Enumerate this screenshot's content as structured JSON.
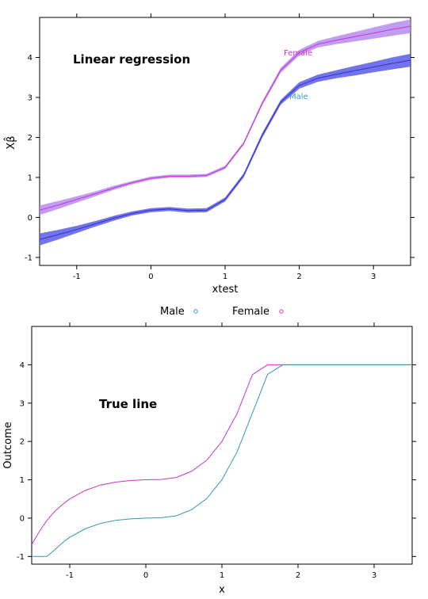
{
  "chart_data": [
    {
      "type": "line",
      "title": "Linear regression",
      "xlabel": "xtest",
      "ylabel": "Xβ̂",
      "xlim": [
        -1.5,
        3.5
      ],
      "ylim": [
        -1.2,
        5.0
      ],
      "xticks": [
        -1,
        0,
        1,
        2,
        3
      ],
      "xtick_labels": [
        "-1",
        "0",
        "1",
        "2",
        "3"
      ],
      "yticks": [
        -1,
        0,
        1,
        2,
        3,
        4
      ],
      "ytick_labels": [
        "-1",
        "0",
        "1",
        "2",
        "3",
        "4"
      ],
      "grid": false,
      "bands": true,
      "x": [
        -1.5,
        -1.25,
        -1.0,
        -0.75,
        -0.5,
        -0.25,
        0.0,
        0.25,
        0.5,
        0.75,
        1.0,
        1.25,
        1.5,
        1.75,
        2.0,
        2.25,
        2.5,
        2.75,
        3.0,
        3.25,
        3.5
      ],
      "series": [
        {
          "name": "Female",
          "color": "#cc33cc",
          "band_color": "#b48cf0",
          "values": [
            0.18,
            0.31,
            0.45,
            0.59,
            0.74,
            0.87,
            0.98,
            1.03,
            1.03,
            1.05,
            1.25,
            1.85,
            2.85,
            3.68,
            4.12,
            4.33,
            4.43,
            4.52,
            4.61,
            4.7,
            4.78
          ],
          "lower": [
            0.06,
            0.21,
            0.37,
            0.53,
            0.69,
            0.83,
            0.94,
            0.99,
            0.99,
            1.01,
            1.21,
            1.81,
            2.8,
            3.62,
            4.05,
            4.25,
            4.33,
            4.4,
            4.47,
            4.54,
            4.61
          ],
          "upper": [
            0.3,
            0.41,
            0.53,
            0.65,
            0.79,
            0.91,
            1.02,
            1.07,
            1.07,
            1.09,
            1.29,
            1.89,
            2.9,
            3.74,
            4.19,
            4.41,
            4.53,
            4.64,
            4.75,
            4.86,
            4.95
          ]
        },
        {
          "name": "Male",
          "color": "#3333cc",
          "band_color": "#5a5ae6",
          "values": [
            -0.55,
            -0.43,
            -0.3,
            -0.16,
            -0.02,
            0.1,
            0.18,
            0.21,
            0.17,
            0.18,
            0.45,
            1.05,
            2.05,
            2.88,
            3.3,
            3.48,
            3.58,
            3.67,
            3.76,
            3.85,
            3.93
          ],
          "lower": [
            -0.7,
            -0.55,
            -0.39,
            -0.23,
            -0.08,
            0.05,
            0.13,
            0.16,
            0.12,
            0.13,
            0.4,
            1.0,
            1.99,
            2.82,
            3.22,
            3.39,
            3.48,
            3.55,
            3.63,
            3.7,
            3.77
          ],
          "upper": [
            -0.4,
            -0.31,
            -0.21,
            -0.09,
            0.04,
            0.15,
            0.23,
            0.26,
            0.22,
            0.23,
            0.5,
            1.1,
            2.11,
            2.94,
            3.38,
            3.57,
            3.68,
            3.79,
            3.89,
            4.0,
            4.09
          ]
        }
      ],
      "annotations": [
        {
          "text": "Female",
          "x": 1.95,
          "y": 4.15,
          "color": "#cc33cc"
        },
        {
          "text": "Male",
          "x": 1.95,
          "y": 3.05,
          "color": "#3399cc"
        }
      ]
    },
    {
      "type": "line",
      "title": "True line",
      "xlabel": "x",
      "ylabel": "Outcome",
      "xlim": [
        -1.5,
        3.5
      ],
      "ylim": [
        -1.2,
        5.0
      ],
      "xticks": [
        -1,
        0,
        1,
        2,
        3
      ],
      "xtick_labels": [
        "-1",
        "0",
        "1",
        "2",
        "3"
      ],
      "yticks": [
        -1,
        0,
        1,
        2,
        3,
        4
      ],
      "ytick_labels": [
        "-1",
        "0",
        "1",
        "2",
        "3",
        "4"
      ],
      "grid": false,
      "x": [
        -1.5,
        -1.4,
        -1.3,
        -1.2,
        -1.1,
        -1.0,
        -0.8,
        -0.6,
        -0.4,
        -0.2,
        0.0,
        0.2,
        0.4,
        0.6,
        0.8,
        1.0,
        1.2,
        1.4,
        1.6,
        1.8,
        1.9,
        2.0,
        2.1,
        2.5,
        3.0,
        3.5
      ],
      "series": [
        {
          "name": "Female",
          "color": "#cc33cc",
          "values": [
            -0.69,
            -0.35,
            -0.06,
            0.17,
            0.35,
            0.5,
            0.72,
            0.86,
            0.94,
            0.98,
            1.0,
            1.01,
            1.06,
            1.22,
            1.51,
            2.0,
            2.73,
            3.74,
            4.0,
            4.0,
            4.0,
            4.0,
            4.0,
            4.0,
            4.0,
            4.0
          ]
        },
        {
          "name": "Male",
          "color": "#3399aa",
          "values": [
            -1.0,
            -1.0,
            -1.0,
            -0.83,
            -0.65,
            -0.5,
            -0.28,
            -0.14,
            -0.06,
            -0.02,
            0.0,
            0.01,
            0.06,
            0.22,
            0.51,
            1.0,
            1.73,
            2.74,
            3.75,
            4.0,
            4.0,
            4.0,
            4.0,
            4.0,
            4.0,
            4.0
          ]
        }
      ]
    }
  ],
  "legend": {
    "items": [
      {
        "label": "Male",
        "color": "#3399aa"
      },
      {
        "label": "Female",
        "color": "#cc33cc"
      }
    ]
  }
}
